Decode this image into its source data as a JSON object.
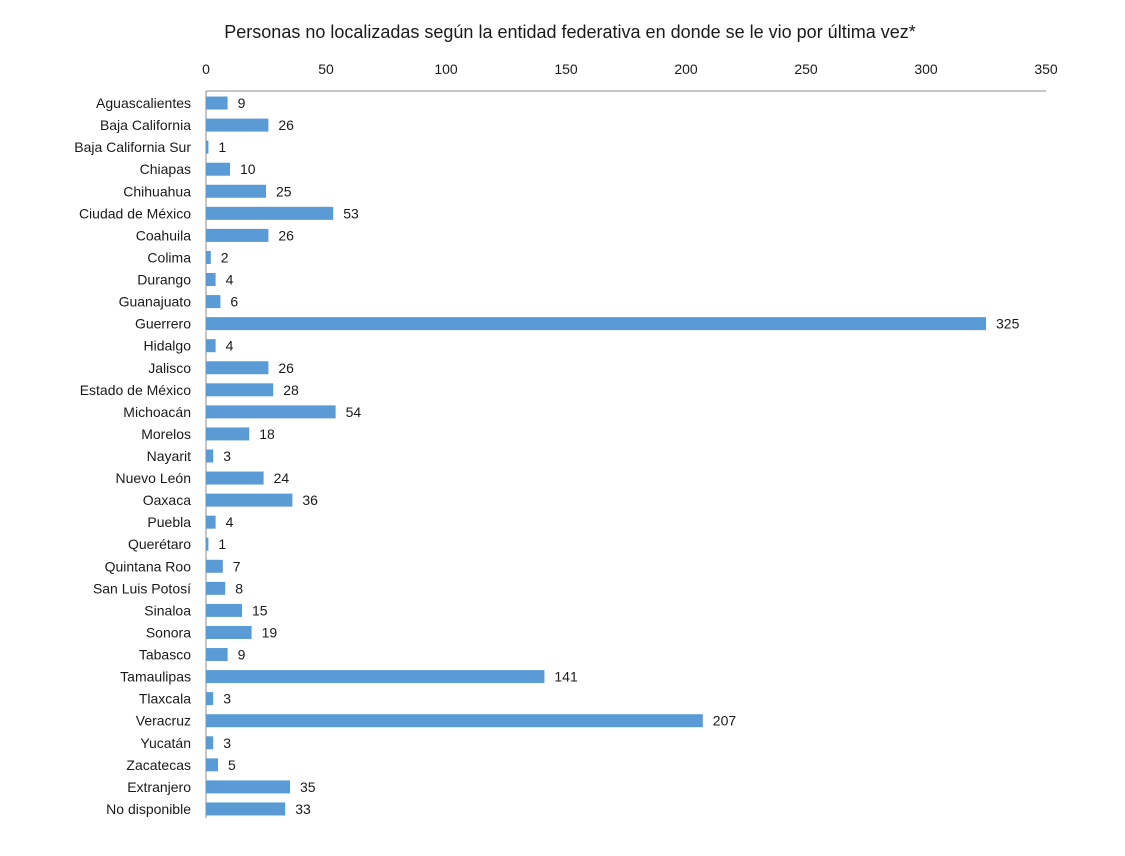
{
  "chart_data": {
    "type": "bar",
    "orientation": "horizontal",
    "title": "Personas no localizadas según la entidad federativa en donde se le vio por última vez*",
    "xlabel": "",
    "ylabel": "",
    "xlim": [
      0,
      350
    ],
    "x_ticks": [
      0,
      50,
      100,
      150,
      200,
      250,
      300,
      350
    ],
    "x_axis_position": "top",
    "grid": false,
    "legend": "none",
    "bar_color": "#5b9bd5",
    "data_labels": true,
    "categories": [
      "Aguascalientes",
      "Baja California",
      "Baja California Sur",
      "Chiapas",
      "Chihuahua",
      "Ciudad de México",
      "Coahuila",
      "Colima",
      "Durango",
      "Guanajuato",
      "Guerrero",
      "Hidalgo",
      "Jalisco",
      "Estado de México",
      "Michoacán",
      "Morelos",
      "Nayarit",
      "Nuevo León",
      "Oaxaca",
      "Puebla",
      "Querétaro",
      "Quintana Roo",
      "San Luis Potosí",
      "Sinaloa",
      "Sonora",
      "Tabasco",
      "Tamaulipas",
      "Tlaxcala",
      "Veracruz",
      "Yucatán",
      "Zacatecas",
      "Extranjero",
      "No disponible"
    ],
    "values": [
      9,
      26,
      1,
      10,
      25,
      53,
      26,
      2,
      4,
      6,
      325,
      4,
      26,
      28,
      54,
      18,
      3,
      24,
      36,
      4,
      1,
      7,
      8,
      15,
      19,
      9,
      141,
      3,
      207,
      3,
      5,
      35,
      33
    ]
  }
}
